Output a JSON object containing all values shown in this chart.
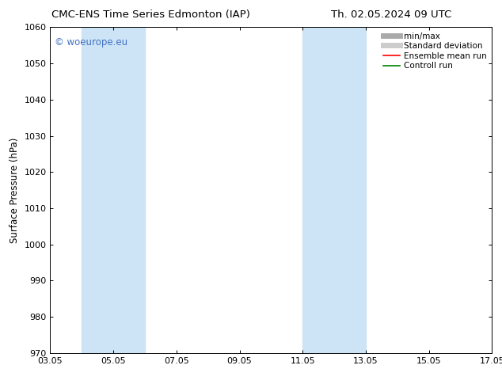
{
  "title_left": "CMC-ENS Time Series Edmonton (IAP)",
  "title_right": "Th. 02.05.2024 09 UTC",
  "ylabel": "Surface Pressure (hPa)",
  "ylim": [
    970,
    1060
  ],
  "yticks": [
    970,
    980,
    990,
    1000,
    1010,
    1020,
    1030,
    1040,
    1050,
    1060
  ],
  "xtick_labels": [
    "03.05",
    "05.05",
    "07.05",
    "09.05",
    "11.05",
    "13.05",
    "15.05",
    "17.05"
  ],
  "xtick_positions": [
    0,
    2,
    4,
    6,
    8,
    10,
    12,
    14
  ],
  "xlim": [
    0,
    14
  ],
  "shade_bands": [
    {
      "x_start": 1.0,
      "x_end": 3.0,
      "color": "#cce4f5"
    },
    {
      "x_start": 8.0,
      "x_end": 10.0,
      "color": "#cce4f5"
    }
  ],
  "watermark_text": "© woeurope.eu",
  "watermark_color": "#4472c4",
  "legend_entries": [
    {
      "label": "min/max",
      "color": "#aaaaaa",
      "lw": 5,
      "ls": "-"
    },
    {
      "label": "Standard deviation",
      "color": "#cccccc",
      "lw": 5,
      "ls": "-"
    },
    {
      "label": "Ensemble mean run",
      "color": "#ff0000",
      "lw": 1.2,
      "ls": "-"
    },
    {
      "label": "Controll run",
      "color": "#008000",
      "lw": 1.2,
      "ls": "-"
    }
  ],
  "bg_color": "#ffffff",
  "plot_bg_color": "#ffffff",
  "title_fontsize": 9.5,
  "axis_label_fontsize": 8.5,
  "tick_fontsize": 8,
  "legend_fontsize": 7.5,
  "watermark_fontsize": 8.5
}
